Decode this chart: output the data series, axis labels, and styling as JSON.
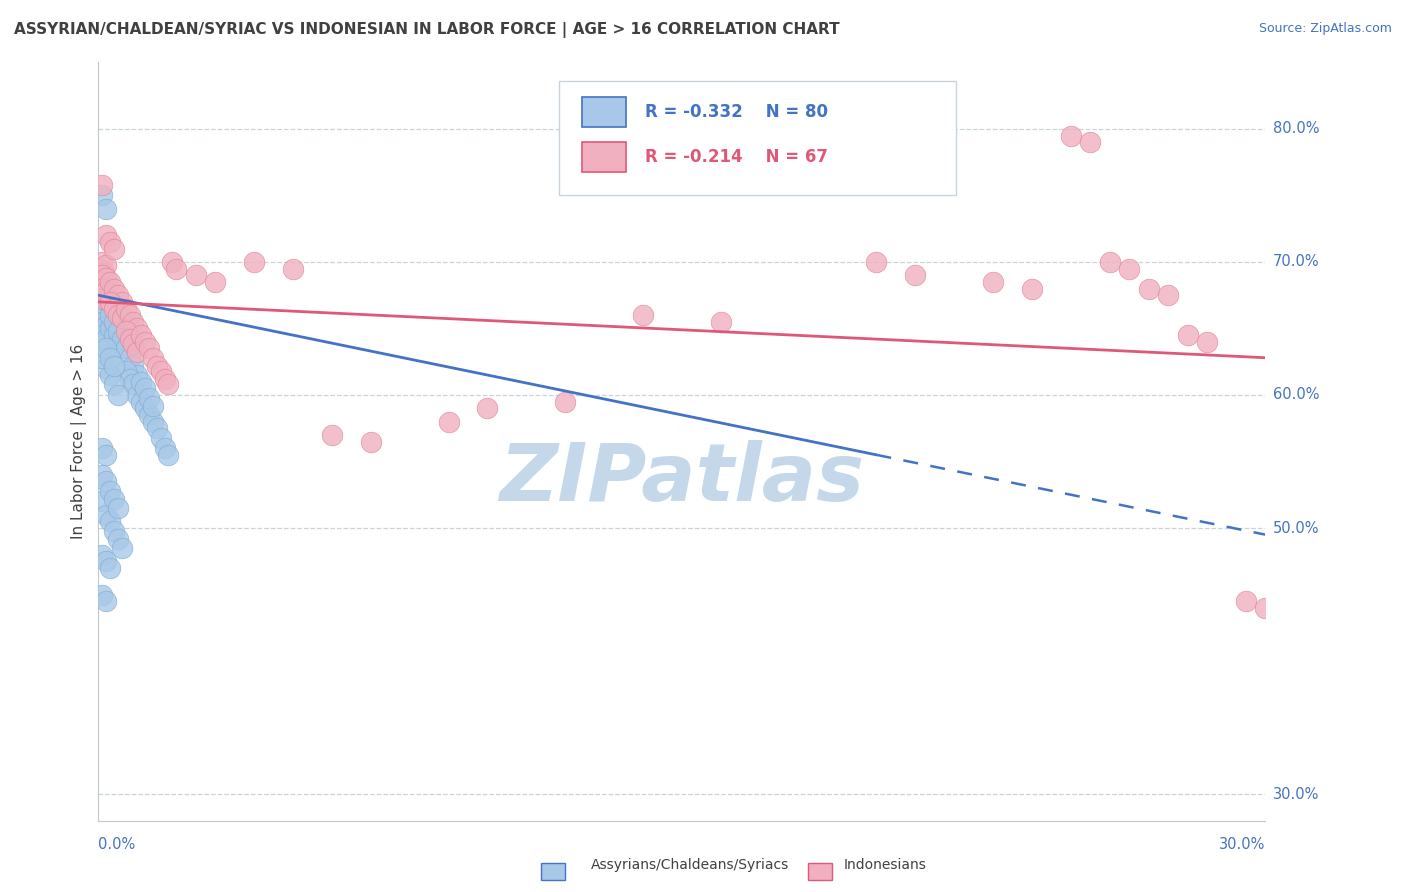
{
  "title": "ASSYRIAN/CHALDEAN/SYRIAC VS INDONESIAN IN LABOR FORCE | AGE > 16 CORRELATION CHART",
  "source_text": "Source: ZipAtlas.com",
  "ylabel": "In Labor Force | Age > 16",
  "xmin": 0.0,
  "xmax": 0.3,
  "ymin": 0.28,
  "ymax": 0.85,
  "yticks": [
    0.3,
    0.5,
    0.6,
    0.7,
    0.8
  ],
  "ytick_labels": [
    "30.0%",
    "50.0%",
    "60.0%",
    "70.0%",
    "80.0%"
  ],
  "grid_yticks": [
    0.8,
    0.7,
    0.6,
    0.5,
    0.3
  ],
  "blue_series": {
    "name": "Assyrians/Chaldeans/Syriacs",
    "color": "#a8c8e8",
    "border_color": "#7aaad0",
    "R": -0.332,
    "N": 80,
    "points": [
      [
        0.0005,
        0.67
      ],
      [
        0.001,
        0.675
      ],
      [
        0.0015,
        0.668
      ],
      [
        0.002,
        0.672
      ],
      [
        0.0005,
        0.66
      ],
      [
        0.001,
        0.665
      ],
      [
        0.0015,
        0.658
      ],
      [
        0.002,
        0.662
      ],
      [
        0.0005,
        0.65
      ],
      [
        0.001,
        0.655
      ],
      [
        0.0015,
        0.648
      ],
      [
        0.002,
        0.652
      ],
      [
        0.0005,
        0.64
      ],
      [
        0.001,
        0.645
      ],
      [
        0.0015,
        0.638
      ],
      [
        0.002,
        0.642
      ],
      [
        0.0005,
        0.68
      ],
      [
        0.001,
        0.685
      ],
      [
        0.0015,
        0.678
      ],
      [
        0.002,
        0.682
      ],
      [
        0.003,
        0.67
      ],
      [
        0.004,
        0.665
      ],
      [
        0.005,
        0.66
      ],
      [
        0.006,
        0.655
      ],
      [
        0.003,
        0.65
      ],
      [
        0.004,
        0.645
      ],
      [
        0.005,
        0.64
      ],
      [
        0.006,
        0.635
      ],
      [
        0.003,
        0.66
      ],
      [
        0.004,
        0.655
      ],
      [
        0.005,
        0.648
      ],
      [
        0.006,
        0.642
      ],
      [
        0.007,
        0.635
      ],
      [
        0.008,
        0.628
      ],
      [
        0.009,
        0.622
      ],
      [
        0.01,
        0.615
      ],
      [
        0.007,
        0.618
      ],
      [
        0.008,
        0.612
      ],
      [
        0.009,
        0.608
      ],
      [
        0.01,
        0.6
      ],
      [
        0.011,
        0.595
      ],
      [
        0.012,
        0.59
      ],
      [
        0.013,
        0.585
      ],
      [
        0.014,
        0.58
      ],
      [
        0.015,
        0.575
      ],
      [
        0.016,
        0.568
      ],
      [
        0.017,
        0.56
      ],
      [
        0.018,
        0.555
      ],
      [
        0.011,
        0.61
      ],
      [
        0.012,
        0.605
      ],
      [
        0.013,
        0.598
      ],
      [
        0.014,
        0.592
      ],
      [
        0.002,
        0.62
      ],
      [
        0.003,
        0.615
      ],
      [
        0.004,
        0.608
      ],
      [
        0.005,
        0.6
      ],
      [
        0.001,
        0.628
      ],
      [
        0.002,
        0.635
      ],
      [
        0.003,
        0.628
      ],
      [
        0.004,
        0.622
      ],
      [
        0.001,
        0.75
      ],
      [
        0.002,
        0.74
      ],
      [
        0.001,
        0.52
      ],
      [
        0.002,
        0.51
      ],
      [
        0.003,
        0.505
      ],
      [
        0.004,
        0.498
      ],
      [
        0.005,
        0.492
      ],
      [
        0.006,
        0.485
      ],
      [
        0.001,
        0.48
      ],
      [
        0.002,
        0.475
      ],
      [
        0.003,
        0.47
      ],
      [
        0.001,
        0.54
      ],
      [
        0.002,
        0.535
      ],
      [
        0.003,
        0.528
      ],
      [
        0.004,
        0.522
      ],
      [
        0.005,
        0.515
      ],
      [
        0.001,
        0.45
      ],
      [
        0.002,
        0.445
      ],
      [
        0.001,
        0.56
      ],
      [
        0.002,
        0.555
      ]
    ]
  },
  "pink_series": {
    "name": "Indonesians",
    "color": "#f0b0c0",
    "border_color": "#e08090",
    "R": -0.214,
    "N": 67,
    "points": [
      [
        0.0005,
        0.695
      ],
      [
        0.001,
        0.7
      ],
      [
        0.0015,
        0.692
      ],
      [
        0.002,
        0.698
      ],
      [
        0.0005,
        0.685
      ],
      [
        0.001,
        0.69
      ],
      [
        0.0015,
        0.682
      ],
      [
        0.002,
        0.688
      ],
      [
        0.0005,
        0.675
      ],
      [
        0.001,
        0.68
      ],
      [
        0.0015,
        0.672
      ],
      [
        0.002,
        0.678
      ],
      [
        0.003,
        0.685
      ],
      [
        0.004,
        0.68
      ],
      [
        0.005,
        0.675
      ],
      [
        0.006,
        0.67
      ],
      [
        0.003,
        0.67
      ],
      [
        0.004,
        0.665
      ],
      [
        0.005,
        0.66
      ],
      [
        0.006,
        0.658
      ],
      [
        0.007,
        0.665
      ],
      [
        0.008,
        0.66
      ],
      [
        0.009,
        0.655
      ],
      [
        0.01,
        0.65
      ],
      [
        0.007,
        0.648
      ],
      [
        0.008,
        0.642
      ],
      [
        0.009,
        0.638
      ],
      [
        0.01,
        0.632
      ],
      [
        0.011,
        0.645
      ],
      [
        0.012,
        0.64
      ],
      [
        0.013,
        0.635
      ],
      [
        0.014,
        0.628
      ],
      [
        0.015,
        0.622
      ],
      [
        0.016,
        0.618
      ],
      [
        0.017,
        0.612
      ],
      [
        0.018,
        0.608
      ],
      [
        0.002,
        0.72
      ],
      [
        0.003,
        0.715
      ],
      [
        0.004,
        0.71
      ],
      [
        0.001,
        0.758
      ],
      [
        0.019,
        0.7
      ],
      [
        0.02,
        0.695
      ],
      [
        0.025,
        0.69
      ],
      [
        0.03,
        0.685
      ],
      [
        0.04,
        0.7
      ],
      [
        0.05,
        0.695
      ],
      [
        0.06,
        0.57
      ],
      [
        0.07,
        0.565
      ],
      [
        0.09,
        0.58
      ],
      [
        0.1,
        0.59
      ],
      [
        0.12,
        0.595
      ],
      [
        0.14,
        0.66
      ],
      [
        0.16,
        0.655
      ],
      [
        0.2,
        0.7
      ],
      [
        0.21,
        0.69
      ],
      [
        0.23,
        0.685
      ],
      [
        0.24,
        0.68
      ],
      [
        0.25,
        0.795
      ],
      [
        0.255,
        0.79
      ],
      [
        0.26,
        0.7
      ],
      [
        0.265,
        0.695
      ],
      [
        0.27,
        0.68
      ],
      [
        0.275,
        0.675
      ],
      [
        0.28,
        0.645
      ],
      [
        0.285,
        0.64
      ],
      [
        0.295,
        0.445
      ],
      [
        0.3,
        0.44
      ]
    ]
  },
  "blue_line": {
    "color": "#4472c4",
    "x0": 0.0,
    "y0": 0.675,
    "x1": 0.2,
    "y1": 0.555,
    "dash_x1": 0.2,
    "dash_y1": 0.555,
    "dash_x2": 0.3,
    "dash_y2": 0.495
  },
  "pink_line": {
    "color": "#e05878",
    "x0": 0.0,
    "y0": 0.67,
    "x1": 0.3,
    "y1": 0.628
  },
  "legend_R1": "R = -0.332",
  "legend_N1": "N = 80",
  "legend_R2": "R = -0.214",
  "legend_N2": "N = 67",
  "blue_color": "#4472c4",
  "pink_color": "#e05878",
  "blue_fill": "#a8c8e8",
  "pink_fill": "#f0b0c0",
  "watermark": "ZIPatlas",
  "watermark_color": "#c5d8ea",
  "title_color": "#404040",
  "axis_label_color": "#4472c4",
  "bg_color": "#ffffff",
  "grid_color": "#c8d4dc",
  "title_fontsize": 11,
  "source_fontsize": 9
}
